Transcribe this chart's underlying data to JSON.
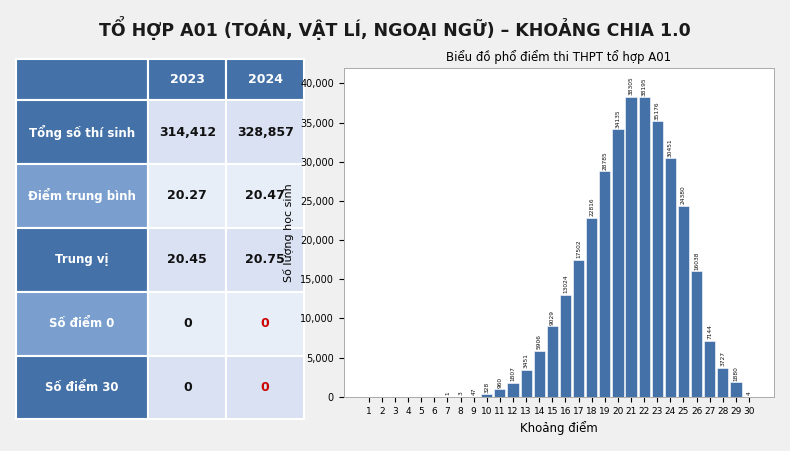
{
  "title": "TỔ HỢP A01 (TOÁN, VẬT LÍ, NGOẠI NGỮ) – KHOẢNG CHIA 1.0",
  "chart_title": "Biểu đồ phổ điểm thi THPT tổ hợp A01",
  "xlabel": "Khoảng điểm",
  "ylabel": "Số lượng học sinh",
  "bar_color": "#4472a8",
  "background_color": "#f0f0f0",
  "table": {
    "headers": [
      "",
      "2023",
      "2024"
    ],
    "rows": [
      [
        "Tổng số thí sinh",
        "314,412",
        "328,857"
      ],
      [
        "Điểm trung bình",
        "20.27",
        "20.47"
      ],
      [
        "Trung vị",
        "20.45",
        "20.75"
      ],
      [
        "Số điểm 0",
        "0",
        "0"
      ],
      [
        "Số điểm 30",
        "0",
        "0"
      ]
    ],
    "header_bg": "#4472a8",
    "header_text_color": "#ffffff",
    "label_colors": [
      "#4472a8",
      "#7a9fcf",
      "#4472a8",
      "#7a9fcf",
      "#4472a8"
    ],
    "value_bg_odd": "#d9e1f2",
    "value_bg_even": "#e8eef8",
    "label_text_color": "#ffffff",
    "red_rows": [
      3,
      4
    ],
    "red_col": 2
  },
  "score_labels": [
    1,
    2,
    3,
    4,
    5,
    6,
    7,
    8,
    9,
    10,
    11,
    12,
    13,
    14,
    15,
    16,
    17,
    18,
    19,
    20,
    21,
    22,
    23,
    24,
    25,
    26,
    27,
    28,
    29,
    30
  ],
  "values": [
    0,
    0,
    0,
    0,
    0,
    0,
    1,
    3,
    47,
    328,
    960,
    1807,
    3451,
    5906,
    9029,
    13024,
    17502,
    22816,
    28785,
    34135,
    38305,
    38195,
    35176,
    30451,
    24380,
    16038,
    7144,
    3727,
    1880,
    4
  ],
  "ylim": [
    0,
    42000
  ],
  "yticks": [
    0,
    5000,
    10000,
    15000,
    20000,
    25000,
    30000,
    35000,
    40000
  ]
}
